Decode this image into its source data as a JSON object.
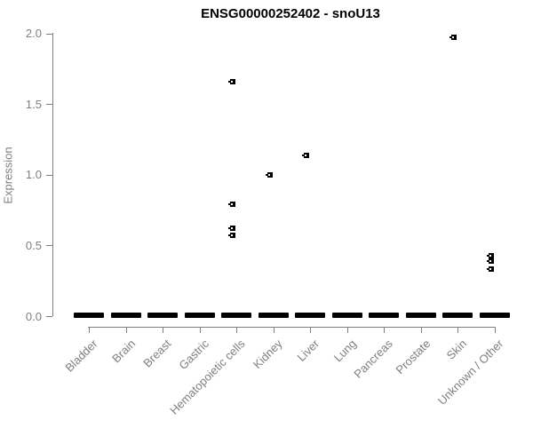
{
  "title": "ENSG00000252402 - snoU13",
  "y_axis": {
    "label": "Expression",
    "tick_labels": [
      "0.0",
      "0.5",
      "1.0",
      "1.5",
      "2.0"
    ]
  },
  "colors": {
    "axis": "#808080",
    "axis_text": "#7f7f7f",
    "title_text": "#000000",
    "marker": "#000000",
    "background": "#ffffff"
  },
  "chart_data": {
    "type": "scatter",
    "title": "ENSG00000252402 - snoU13",
    "xlabel": "",
    "ylabel": "Expression",
    "ylim": [
      0.0,
      2.0
    ],
    "yticks": [
      0.0,
      0.5,
      1.0,
      1.5,
      2.0
    ],
    "grid": false,
    "legend": "none",
    "marker": "small black open square",
    "zero_cluster_note": "every category shows a dense horizontal cluster of points at expression 0",
    "categories": [
      "Bladder",
      "Brain",
      "Breast",
      "Gastric",
      "Hematopoietic cells",
      "Kidney",
      "Liver",
      "Lung",
      "Pancreas",
      "Prostate",
      "Skin",
      "Unknown / Other"
    ],
    "series": [
      {
        "category": "Bladder",
        "zero_cluster": true,
        "points": []
      },
      {
        "category": "Brain",
        "zero_cluster": true,
        "points": []
      },
      {
        "category": "Breast",
        "zero_cluster": true,
        "points": []
      },
      {
        "category": "Gastric",
        "zero_cluster": true,
        "points": []
      },
      {
        "category": "Hematopoietic cells",
        "zero_cluster": true,
        "points": [
          1.66,
          0.79,
          0.62,
          0.57
        ]
      },
      {
        "category": "Kidney",
        "zero_cluster": true,
        "points": [
          1.0
        ]
      },
      {
        "category": "Liver",
        "zero_cluster": true,
        "points": [
          1.14
        ]
      },
      {
        "category": "Lung",
        "zero_cluster": true,
        "points": []
      },
      {
        "category": "Pancreas",
        "zero_cluster": true,
        "points": []
      },
      {
        "category": "Prostate",
        "zero_cluster": true,
        "points": []
      },
      {
        "category": "Skin",
        "zero_cluster": true,
        "points": [
          1.97
        ]
      },
      {
        "category": "Unknown / Other",
        "zero_cluster": true,
        "points": [
          0.43,
          0.39,
          0.33
        ]
      }
    ]
  }
}
